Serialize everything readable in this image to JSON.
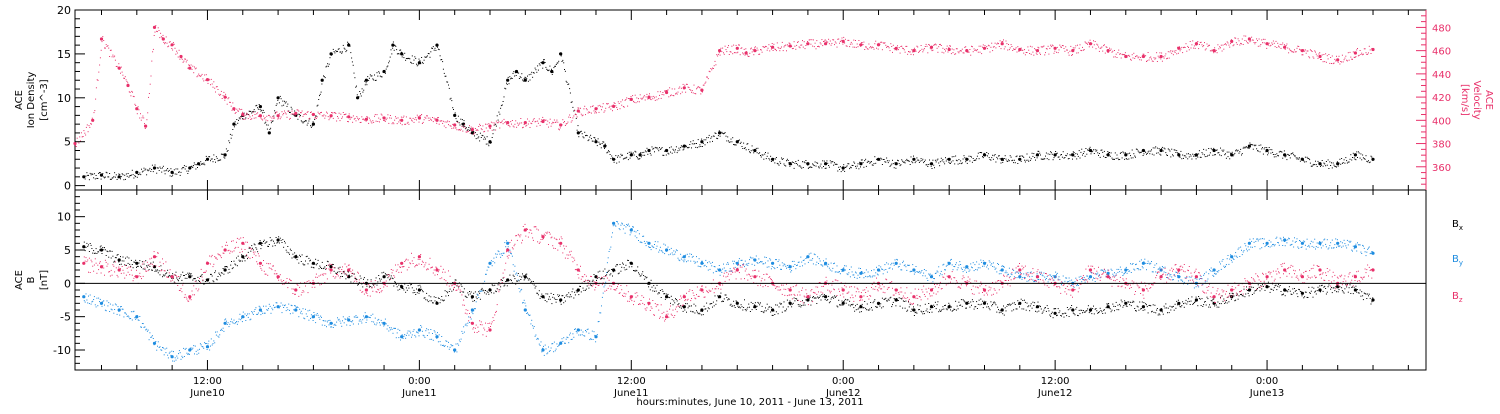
{
  "chart_data": [
    {
      "type": "scatter",
      "panel": "top",
      "title": "",
      "xlabel": "hours:minutes, June 10, 2011 - June 13, 2011",
      "x_unit": "hours since 2011-06-10 00:00 UT",
      "xlim": [
        4.5,
        81
      ],
      "ylabel_lines": [
        "ACE",
        "Ion Density",
        "[cm^-3]"
      ],
      "ylim": [
        -0.5,
        20
      ],
      "y_ticks": [
        "0",
        "5",
        "10",
        "15",
        "20"
      ],
      "y2label_lines": [
        "ACE",
        "Velocity",
        "[km/s]"
      ],
      "y2lim": [
        340,
        495
      ],
      "y2_ticks": [
        "360",
        "380",
        "400",
        "420",
        "440",
        "460",
        "480"
      ],
      "series": [
        {
          "name": "",
          "axis": "left",
          "color": "#000000",
          "x": [
            5,
            6,
            7,
            8,
            9,
            10,
            11,
            11.5,
            12,
            13,
            13.5,
            14,
            15,
            15.5,
            16,
            17,
            18,
            18.5,
            19,
            20,
            20.5,
            21,
            22,
            22.5,
            23,
            24,
            25,
            26,
            26.5,
            27,
            28,
            29,
            29.5,
            30,
            31,
            31.5,
            32,
            33,
            34,
            34.5,
            35,
            36,
            36.5,
            37,
            38,
            39,
            40,
            41,
            42,
            43,
            44,
            45,
            46,
            47,
            48,
            49,
            50,
            51,
            52,
            53,
            54,
            55,
            56,
            57,
            58,
            59,
            60,
            61,
            62,
            63,
            64,
            65,
            66,
            67,
            68,
            69,
            70,
            71,
            72,
            73,
            74,
            75,
            76,
            77,
            78
          ],
          "values": [
            1,
            1.2,
            1,
            1.5,
            2,
            1.5,
            2,
            2.5,
            3,
            3.5,
            7,
            8,
            9,
            6,
            10,
            8,
            7,
            12,
            15,
            16,
            10,
            12,
            13,
            16,
            15,
            14,
            16,
            8,
            7,
            6,
            5,
            12,
            13,
            12,
            14,
            13,
            15,
            6,
            5,
            4.5,
            3,
            3.5,
            3.5,
            4,
            4,
            4.5,
            5,
            6,
            5,
            4,
            3,
            2.5,
            2.5,
            2.5,
            2,
            2.5,
            3,
            2.5,
            3,
            2.5,
            3,
            3,
            3.5,
            3,
            3,
            3.5,
            3.5,
            3.5,
            4,
            3.5,
            3.5,
            4,
            4,
            3.5,
            3.5,
            4,
            3.5,
            4.5,
            4,
            3.5,
            3,
            2.5,
            2.5,
            3.5,
            3
          ]
        },
        {
          "name": "",
          "axis": "right",
          "color": "#e8306a",
          "x": [
            4.5,
            5.5,
            6,
            7,
            7.5,
            8,
            8.5,
            9,
            9.5,
            10,
            10.5,
            11,
            12,
            13,
            13.5,
            14,
            15,
            16,
            17,
            18,
            19,
            20,
            21,
            22,
            23,
            24,
            25,
            26,
            27,
            28,
            29,
            30,
            31,
            32,
            33,
            34,
            35,
            36,
            37,
            38,
            39,
            40,
            41,
            42,
            42.5,
            43,
            44,
            45,
            46,
            47,
            48,
            49,
            50,
            51,
            52,
            53,
            54,
            55,
            56,
            57,
            58,
            59,
            60,
            61,
            62,
            63,
            64,
            65,
            66,
            67,
            68,
            69,
            70,
            71,
            72,
            73,
            74,
            75,
            76,
            77,
            78
          ],
          "values": [
            380,
            400,
            470,
            445,
            430,
            410,
            395,
            480,
            470,
            465,
            455,
            445,
            435,
            420,
            410,
            405,
            404,
            404,
            406,
            405,
            404,
            403,
            401,
            402,
            400,
            402,
            400,
            396,
            392,
            395,
            398,
            398,
            399,
            396,
            408,
            410,
            412,
            418,
            420,
            424,
            428,
            426,
            460,
            462,
            458,
            460,
            463,
            464,
            466,
            466,
            468,
            465,
            465,
            462,
            460,
            463,
            461,
            460,
            462,
            466,
            461,
            460,
            462,
            460,
            466,
            460,
            455,
            455,
            455,
            462,
            466,
            460,
            468,
            470,
            466,
            463,
            460,
            455,
            452,
            458,
            461
          ]
        }
      ]
    },
    {
      "type": "scatter",
      "panel": "bottom",
      "title": "",
      "xlabel": "hours:minutes, June 10, 2011 - June 13, 2011",
      "x_unit": "hours since 2011-06-10 00:00 UT",
      "xlim": [
        4.5,
        81
      ],
      "ylabel_lines": [
        "ACE",
        "B",
        "[nT]"
      ],
      "ylim": [
        -13,
        14
      ],
      "y_ticks": [
        "-10",
        "-5",
        "0",
        "5",
        "10"
      ],
      "zero_line": true,
      "legend": {
        "placement": "right",
        "entries": [
          {
            "main": "B",
            "sub": "x",
            "color": "#000000"
          },
          {
            "main": "B",
            "sub": "y",
            "color": "#1e8ce0"
          },
          {
            "main": "B",
            "sub": "z",
            "color": "#e8306a"
          }
        ]
      },
      "series": [
        {
          "name": "Bx",
          "color": "#000000",
          "x": [
            5,
            6,
            7,
            8,
            9,
            10,
            11,
            12,
            13,
            14,
            15,
            16,
            17,
            18,
            19,
            20,
            21,
            22,
            23,
            24,
            25,
            26,
            27,
            28,
            29,
            30,
            31,
            32,
            33,
            34,
            35,
            36,
            37,
            38,
            39,
            40,
            41,
            42,
            43,
            44,
            45,
            46,
            47,
            48,
            49,
            50,
            51,
            52,
            53,
            54,
            55,
            56,
            57,
            58,
            59,
            60,
            61,
            62,
            63,
            64,
            65,
            66,
            67,
            68,
            69,
            70,
            71,
            72,
            73,
            74,
            75,
            76,
            77,
            78
          ],
          "values": [
            5.5,
            5,
            3.5,
            3,
            2.5,
            1,
            1,
            0.5,
            2,
            4,
            6,
            6.5,
            4,
            3,
            2.5,
            1,
            0,
            1,
            -0.5,
            -1,
            -3,
            0,
            -2,
            -1,
            0.5,
            1,
            -2,
            -2.5,
            -1,
            1,
            2,
            3,
            0,
            -2,
            -3.5,
            -4,
            -2,
            -3,
            -3.5,
            -4,
            -3,
            -2.5,
            -2,
            -3,
            -3.5,
            -3,
            -2.5,
            -4,
            -3.5,
            -3.5,
            -3,
            -3,
            -4,
            -3,
            -3.5,
            -4.5,
            -4,
            -4,
            -3.5,
            -3,
            -3.5,
            -4,
            -3,
            -2.5,
            -3,
            -2,
            -1,
            -0.5,
            -1,
            -1.5,
            -1,
            -0.5,
            -1,
            -2.5
          ]
        },
        {
          "name": "By",
          "color": "#1e8ce0",
          "x": [
            5,
            6,
            7,
            8,
            9,
            10,
            11,
            12,
            13,
            14,
            15,
            16,
            17,
            18,
            19,
            20,
            21,
            22,
            23,
            24,
            25,
            26,
            27,
            28,
            29,
            30,
            31,
            32,
            33,
            34,
            35,
            36,
            37,
            38,
            39,
            40,
            41,
            42,
            43,
            44,
            45,
            46,
            47,
            48,
            49,
            50,
            51,
            52,
            53,
            54,
            55,
            56,
            57,
            58,
            59,
            60,
            61,
            62,
            63,
            64,
            65,
            66,
            67,
            68,
            69,
            70,
            71,
            72,
            73,
            74,
            75,
            76,
            77,
            78
          ],
          "values": [
            -2,
            -3,
            -4,
            -5,
            -9,
            -11,
            -10,
            -9.5,
            -6,
            -5,
            -4,
            -3.5,
            -4,
            -5,
            -6,
            -5.5,
            -5,
            -6,
            -8,
            -7,
            -8,
            -10,
            -4,
            3,
            6,
            -4,
            -10,
            -9,
            -7,
            -8,
            9,
            8,
            6,
            5,
            4,
            3,
            2,
            3,
            3.5,
            3,
            2.5,
            4,
            3,
            2,
            1.5,
            2,
            3,
            2,
            1,
            3,
            2.5,
            3,
            2,
            1,
            1,
            1,
            0,
            1,
            1.5,
            2,
            3,
            2,
            1,
            0,
            2,
            4,
            6,
            6,
            6.5,
            6,
            6,
            6,
            5.5,
            4.5
          ]
        },
        {
          "name": "Bz",
          "color": "#e8306a",
          "x": [
            5,
            6,
            7,
            8,
            9,
            10,
            11,
            12,
            13,
            14,
            15,
            16,
            17,
            18,
            19,
            20,
            21,
            22,
            23,
            24,
            25,
            26,
            27,
            28,
            29,
            30,
            31,
            32,
            33,
            34,
            35,
            36,
            37,
            38,
            39,
            40,
            41,
            42,
            43,
            44,
            45,
            46,
            47,
            48,
            49,
            50,
            51,
            52,
            53,
            54,
            55,
            56,
            57,
            58,
            59,
            60,
            61,
            62,
            63,
            64,
            65,
            66,
            67,
            68,
            69,
            70,
            71,
            72,
            73,
            74,
            75,
            76,
            77,
            78
          ],
          "values": [
            3,
            2.5,
            2,
            1,
            4,
            1,
            -2,
            3,
            5,
            6,
            3,
            1,
            -1,
            0,
            2,
            2,
            -1,
            0,
            3,
            4,
            2,
            0,
            -6,
            -7,
            5,
            8,
            7,
            6,
            2,
            0,
            0,
            -2,
            -3,
            -5,
            -2,
            -1,
            0,
            2,
            1,
            0,
            -1,
            -2,
            0,
            -1,
            -2,
            0,
            -1,
            -2,
            -1,
            1,
            0,
            -1,
            0,
            2,
            1,
            0,
            -1,
            2,
            1,
            0,
            -1,
            1,
            2,
            1,
            -2,
            -1,
            0,
            1,
            2,
            1,
            2,
            0,
            1,
            2
          ]
        }
      ]
    }
  ],
  "x_axis": {
    "ticks": [
      {
        "pos": 12,
        "time": "12:00",
        "date": "June10"
      },
      {
        "pos": 24,
        "time": "0:00",
        "date": "June11"
      },
      {
        "pos": 36,
        "time": "12:00",
        "date": "June11"
      },
      {
        "pos": 48,
        "time": "0:00",
        "date": "June12"
      },
      {
        "pos": 60,
        "time": "12:00",
        "date": "June12"
      },
      {
        "pos": 72,
        "time": "0:00",
        "date": "June13"
      }
    ]
  },
  "colors": {
    "density": "#000000",
    "velocity": "#e8306a",
    "bx": "#000000",
    "by": "#1e8ce0",
    "bz": "#e8306a"
  }
}
